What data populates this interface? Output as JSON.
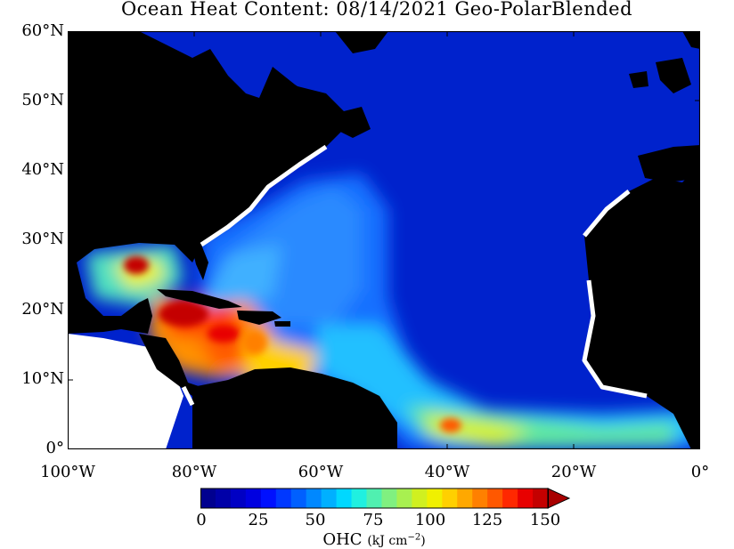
{
  "title": "Ocean Heat Content: 08/14/2021 Geo-PolarBlended",
  "map": {
    "y_axis_labels": [
      "60°N",
      "50°N",
      "40°N",
      "30°N",
      "20°N",
      "10°N",
      "0°"
    ],
    "x_axis_labels": [
      "100°W",
      "80°W",
      "60°W",
      "40°W",
      "20°W",
      "0°"
    ],
    "lat_range": [
      0,
      60
    ],
    "lon_range": [
      -100,
      0
    ],
    "land_color": "#000000",
    "ocean_background_color": "#0022cc",
    "nodata_color": "#ffffff"
  },
  "colorbar": {
    "tick_labels": [
      "0",
      "25",
      "50",
      "75",
      "100",
      "125",
      "150"
    ],
    "title": "OHC",
    "units": "(kJ cm",
    "units_exp": "−2",
    "units_close": ")",
    "colors": [
      "#00008f",
      "#0000a8",
      "#0000c4",
      "#0000e0",
      "#0010ff",
      "#0038ff",
      "#0060ff",
      "#0088ff",
      "#00b0ff",
      "#00d8ff",
      "#20f0e0",
      "#50f0b0",
      "#80f080",
      "#a8f050",
      "#d0f020",
      "#f0f000",
      "#ffd000",
      "#ffa800",
      "#ff8000",
      "#ff5800",
      "#ff2800",
      "#e80000",
      "#c40000"
    ]
  }
}
